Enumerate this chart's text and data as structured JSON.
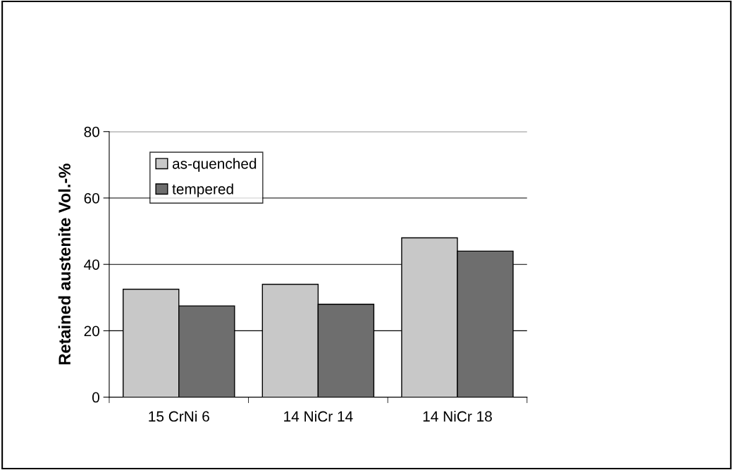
{
  "chart_data": {
    "type": "bar",
    "ylabel": "Retained austenite Vol.-%",
    "categories": [
      "15 CrNi 6",
      "14 NiCr 14",
      "14 NiCr 18"
    ],
    "series": [
      {
        "name": "as-quenched",
        "color": "#c8c8c8",
        "values": [
          32.5,
          34,
          48
        ]
      },
      {
        "name": "tempered",
        "color": "#6e6e6e",
        "values": [
          27.5,
          28,
          44
        ]
      }
    ],
    "ylim": [
      0,
      80
    ],
    "yticks": [
      0,
      20,
      40,
      60,
      80
    ],
    "grid": "y",
    "legend": "top left"
  }
}
